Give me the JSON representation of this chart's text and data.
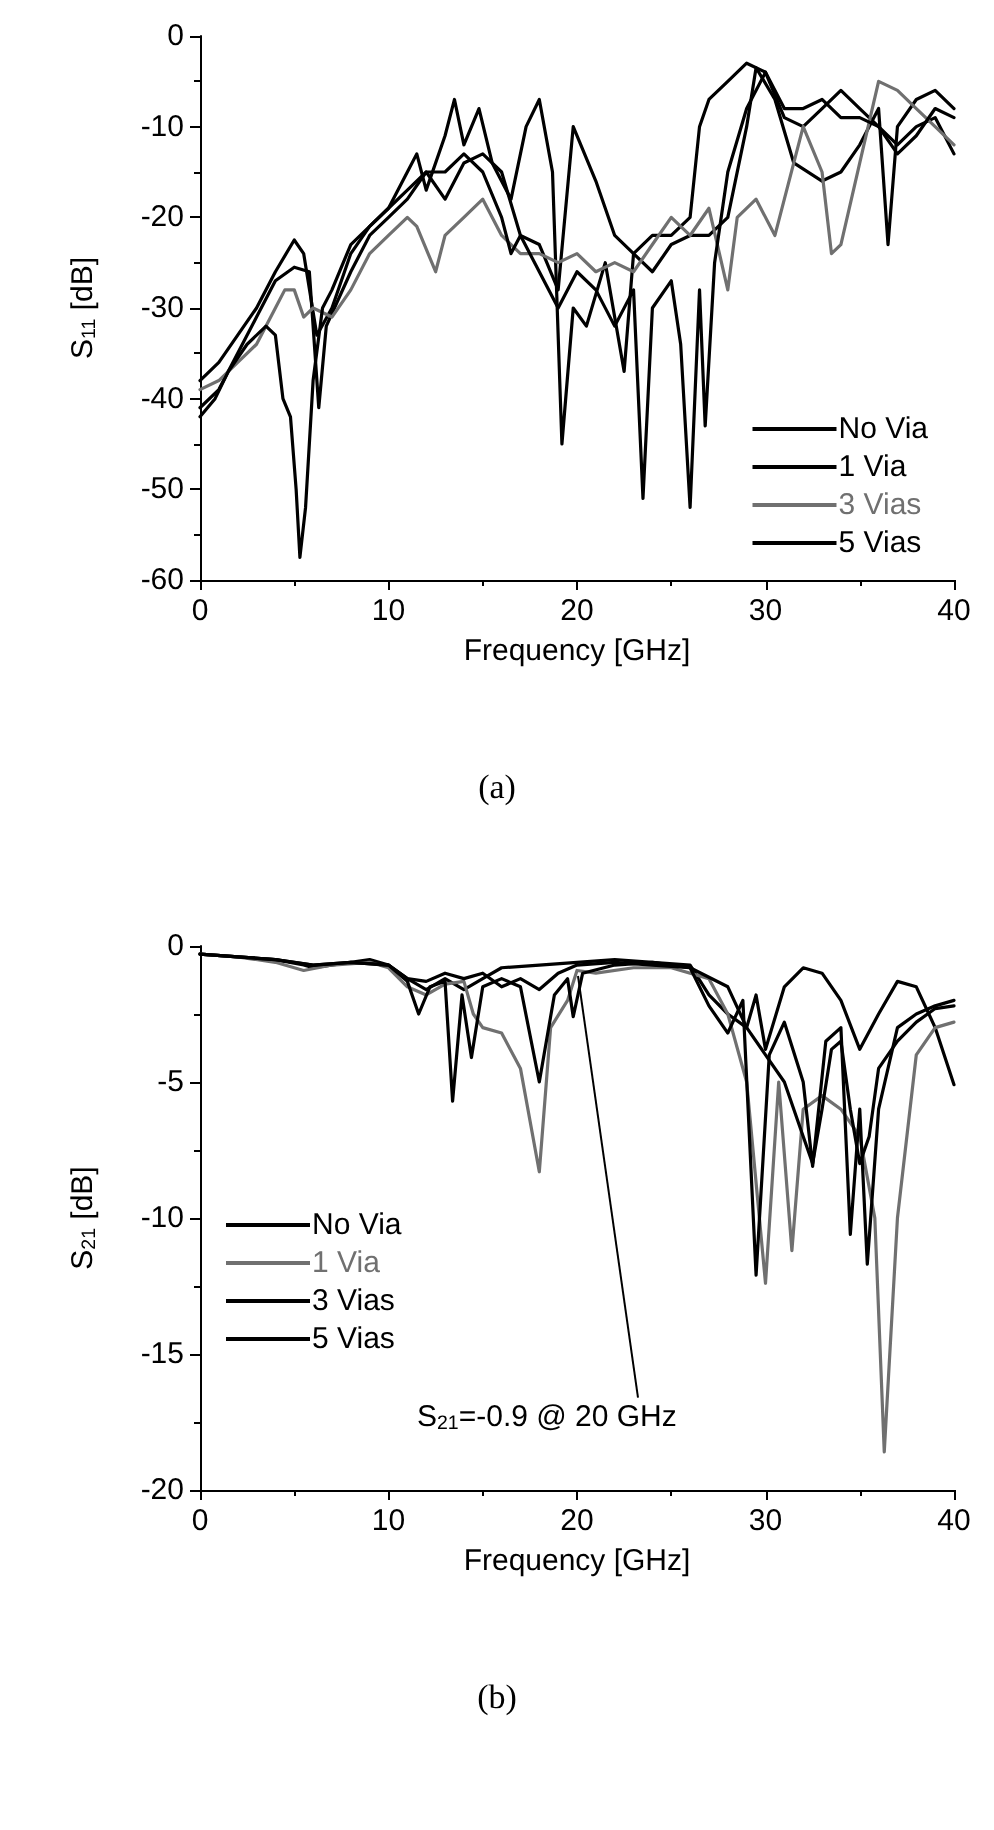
{
  "chart_data": [
    {
      "type": "line",
      "xlabel": "Frequency [GHz]",
      "ylabel": "S$_{11}$ [dB]",
      "annotations": [
        "(a)"
      ],
      "xlim": [
        0,
        40
      ],
      "xticks": [
        0,
        10,
        20,
        30,
        40
      ],
      "ylim": [
        -60,
        0
      ],
      "yticks": [
        -60,
        -50,
        -40,
        -30,
        -20,
        -10,
        0
      ],
      "grid": false,
      "legend": "bottom right",
      "marker": "none",
      "line_style": "solid",
      "series": [
        {
          "name": "No Via",
          "color": "#000000",
          "x": [
            0,
            1,
            2,
            3,
            4,
            5,
            5.5,
            6.2,
            7,
            8,
            9,
            10,
            11,
            11.5,
            12,
            13,
            13.5,
            14,
            14.8,
            15.5,
            16.5,
            17.3,
            18,
            18.7,
            19.2,
            19.8,
            20.5,
            21.5,
            22.5,
            23,
            24,
            25,
            26,
            26.5,
            27,
            28,
            29,
            30,
            31,
            32,
            33,
            34,
            35,
            36,
            37,
            38,
            39,
            40
          ],
          "values": [
            -38,
            -36,
            -33,
            -30,
            -26,
            -22.5,
            -24,
            -33,
            -30,
            -24,
            -21,
            -19,
            -15,
            -13,
            -17,
            -11,
            -7,
            -12,
            -8,
            -14,
            -18,
            -10,
            -7,
            -15,
            -45,
            -30,
            -32,
            -25,
            -37,
            -24,
            -22,
            -22,
            -20,
            -10,
            -7,
            -5,
            -3,
            -4,
            -9,
            -10,
            -8,
            -6,
            -8,
            -10,
            -12,
            -10,
            -9,
            -13
          ]
        },
        {
          "name": "1 Via",
          "color": "#000000",
          "x": [
            0,
            1,
            2,
            3,
            4,
            5,
            5.8,
            6.3,
            6.7,
            8,
            9,
            10,
            11,
            12,
            13,
            14,
            15,
            16,
            17,
            18,
            19,
            19.8,
            21,
            22,
            23,
            24,
            25,
            26,
            27,
            28,
            29,
            29.5,
            30.5,
            31.5,
            33,
            34,
            35,
            36,
            36.5,
            37,
            38,
            39,
            40
          ],
          "values": [
            -41,
            -39,
            -35,
            -31,
            -27,
            -25.5,
            -26,
            -41,
            -32,
            -26,
            -22,
            -20,
            -18,
            -15,
            -18,
            -14,
            -13,
            -15,
            -22,
            -23,
            -28,
            -10,
            -16,
            -22,
            -24,
            -26,
            -23,
            -22,
            -22,
            -20,
            -10,
            -3.5,
            -7,
            -14,
            -16,
            -15,
            -12,
            -8,
            -23,
            -10,
            -7,
            -6,
            -8
          ]
        },
        {
          "name": "3 Vias",
          "color": "#707070",
          "x": [
            0,
            1,
            2,
            3,
            4,
            4.5,
            5,
            5.5,
            6,
            7,
            8,
            9,
            10,
            11,
            11.5,
            12.5,
            13,
            14,
            15,
            16,
            17,
            18,
            19,
            20,
            21,
            22,
            23,
            24,
            25,
            26,
            27,
            28,
            28.5,
            29.5,
            30.5,
            31,
            32,
            33,
            33.5,
            34,
            35,
            36,
            37,
            38,
            39,
            40
          ],
          "values": [
            -39,
            -38,
            -36,
            -34,
            -30,
            -28,
            -28,
            -31,
            -30,
            -31,
            -28,
            -24,
            -22,
            -20,
            -21,
            -26,
            -22,
            -20,
            -18,
            -22,
            -24,
            -24,
            -25,
            -24,
            -26,
            -25,
            -26,
            -23,
            -20,
            -22,
            -19,
            -28,
            -20,
            -18,
            -22,
            -18,
            -10,
            -15,
            -24,
            -23,
            -14,
            -5,
            -6,
            -8,
            -10,
            -12
          ]
        },
        {
          "name": "5 Vias",
          "color": "#000000",
          "x": [
            0,
            0.8,
            1.5,
            2.5,
            3.5,
            4,
            4.4,
            4.8,
            5.1,
            5.3,
            5.6,
            6,
            6.5,
            7,
            8,
            9,
            10,
            11,
            12,
            13,
            14,
            15,
            16,
            16.5,
            17,
            18,
            19,
            20,
            21,
            22,
            23,
            23.5,
            24,
            25,
            25.5,
            26,
            26.5,
            26.8,
            27.3,
            28,
            29,
            30,
            31,
            32,
            33,
            34,
            35,
            36,
            37,
            38,
            39,
            40
          ],
          "values": [
            -42,
            -40,
            -37,
            -34,
            -32,
            -33,
            -40,
            -42,
            -50,
            -57.5,
            -52,
            -38,
            -30,
            -28,
            -23,
            -21,
            -19,
            -17,
            -15,
            -15,
            -13,
            -15,
            -20,
            -24,
            -22,
            -26,
            -30,
            -26,
            -28,
            -32,
            -28,
            -51,
            -30,
            -27,
            -34,
            -52,
            -28,
            -43,
            -25,
            -15,
            -8,
            -4,
            -8,
            -8,
            -7,
            -9,
            -9,
            -10,
            -13,
            -11,
            -8,
            -9
          ]
        }
      ]
    },
    {
      "type": "line",
      "xlabel": "Frequency [GHz]",
      "ylabel": "S$_{21}$ [dB]",
      "annotations": [
        "(b)",
        {
          "text": "S$_{21}$=-0.9 @ 20 GHz",
          "x": 20,
          "y": -0.9
        }
      ],
      "xlim": [
        0,
        40
      ],
      "xticks": [
        0,
        10,
        20,
        30,
        40
      ],
      "ylim": [
        -20,
        0
      ],
      "yticks": [
        -20,
        -15,
        -10,
        -5,
        0
      ],
      "grid": false,
      "legend": "left",
      "marker": "none",
      "line_style": "solid",
      "series": [
        {
          "name": "No Via",
          "color": "#000000",
          "x": [
            0,
            2,
            4,
            5.5,
            6,
            8,
            9,
            10,
            11,
            12,
            13,
            14,
            15,
            16,
            18,
            20,
            22,
            24,
            26,
            27,
            28,
            29,
            29.5,
            30,
            31,
            32,
            33,
            34,
            35,
            36,
            37,
            38,
            39,
            40
          ],
          "values": [
            -0.3,
            -0.4,
            -0.5,
            -0.7,
            -0.8,
            -0.6,
            -0.5,
            -0.7,
            -1.2,
            -1.6,
            -1.2,
            -1.6,
            -1.2,
            -0.8,
            -0.7,
            -0.6,
            -0.5,
            -0.6,
            -0.7,
            -1.8,
            -2.5,
            -3,
            -1.8,
            -3.8,
            -1.5,
            -0.8,
            -1,
            -2,
            -3.8,
            -2.5,
            -1.3,
            -1.5,
            -3,
            -5.1
          ]
        },
        {
          "name": "1 Via",
          "color": "#707070",
          "x": [
            0,
            2,
            4,
            5.5,
            7,
            9,
            10,
            11,
            12,
            13,
            14,
            14.5,
            15,
            16,
            17,
            18,
            18.6,
            19.5,
            20,
            21,
            23,
            25,
            27,
            28,
            29,
            30,
            30.7,
            31.4,
            32,
            33,
            34,
            35,
            35.8,
            36.3,
            37,
            38,
            39,
            40
          ],
          "values": [
            -0.3,
            -0.4,
            -0.6,
            -0.9,
            -0.7,
            -0.6,
            -0.8,
            -1.5,
            -1.8,
            -1.4,
            -1.3,
            -2.5,
            -3,
            -3.2,
            -4.5,
            -8.3,
            -3,
            -2,
            -0.9,
            -1,
            -0.8,
            -0.8,
            -1.2,
            -2.5,
            -5,
            -12.4,
            -5,
            -11.2,
            -6,
            -5.5,
            -6,
            -7,
            -10,
            -18.6,
            -10,
            -4,
            -3,
            -2.8
          ]
        },
        {
          "name": "3 Vias",
          "color": "#000000",
          "x": [
            0,
            2,
            4,
            6,
            8,
            10,
            11,
            11.6,
            12.2,
            13,
            13.4,
            13.9,
            14.4,
            15,
            16,
            17,
            18,
            18.8,
            19.5,
            19.8,
            20.3,
            22,
            24,
            26,
            27,
            28,
            28.8,
            29.5,
            30.2,
            31,
            32,
            32.5,
            33.2,
            34,
            34.5,
            35,
            35.4,
            36,
            37,
            38,
            39,
            40
          ],
          "values": [
            -0.3,
            -0.4,
            -0.5,
            -0.7,
            -0.6,
            -0.7,
            -1.3,
            -2.5,
            -1.5,
            -1.3,
            -5.7,
            -1.8,
            -4.1,
            -1.5,
            -1.2,
            -1.5,
            -5,
            -1.8,
            -1.2,
            -2.6,
            -1,
            -0.7,
            -0.6,
            -0.8,
            -2.2,
            -3.2,
            -2,
            -12.1,
            -4,
            -2.8,
            -5,
            -8.1,
            -3.5,
            -3,
            -10.6,
            -6,
            -11.7,
            -6,
            -3,
            -2.5,
            -2.2,
            -2
          ]
        },
        {
          "name": "5 Vias",
          "color": "#000000",
          "x": [
            0,
            2,
            4,
            6,
            8,
            10,
            11,
            12,
            13,
            14,
            15,
            16,
            17,
            18,
            19,
            20,
            22,
            24,
            26,
            28,
            29,
            30,
            31,
            32,
            32.5,
            33,
            33.5,
            34,
            34.5,
            35,
            35.5,
            36,
            37,
            38,
            39,
            40
          ],
          "values": [
            -0.3,
            -0.4,
            -0.5,
            -0.7,
            -0.6,
            -0.7,
            -1.2,
            -1.3,
            -1,
            -1.2,
            -1,
            -1.5,
            -1.2,
            -1.6,
            -1,
            -0.7,
            -0.6,
            -0.7,
            -0.8,
            -1.5,
            -3,
            -4,
            -5,
            -7,
            -8,
            -6,
            -3.8,
            -3.5,
            -6,
            -8,
            -7,
            -4.5,
            -3.5,
            -2.8,
            -2.3,
            -2.2
          ]
        }
      ]
    }
  ]
}
